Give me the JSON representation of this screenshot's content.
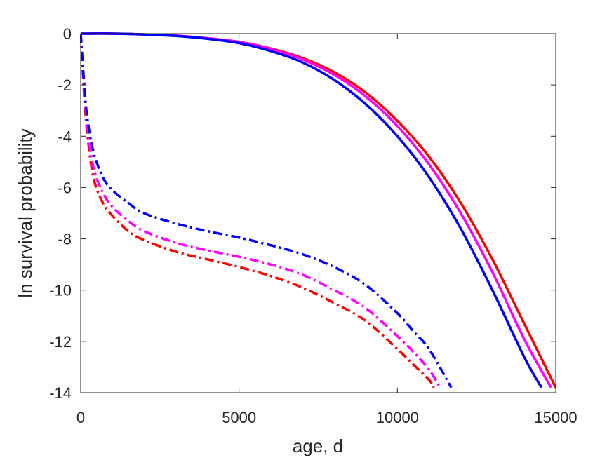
{
  "chart_data": {
    "type": "line",
    "xlabel": "age, d",
    "ylabel": "ln survival probability",
    "xlim": [
      0,
      15000
    ],
    "ylim": [
      -14,
      0
    ],
    "xticks": [
      "0",
      "5000",
      "10000",
      "15000"
    ],
    "yticks": [
      "0",
      "-2",
      "-4",
      "-6",
      "-8",
      "-10",
      "-12",
      "-14"
    ],
    "grid": false,
    "legend": "none",
    "series": [
      {
        "color": "#ff0000",
        "style": "solid",
        "x": [
          0,
          1000,
          2000,
          3000,
          4000,
          5000,
          6000,
          7000,
          8000,
          9000,
          10000,
          11000,
          12000,
          13000,
          14000,
          15000
        ],
        "y": [
          0,
          0,
          -0.03,
          -0.08,
          -0.18,
          -0.32,
          -0.58,
          -0.95,
          -1.5,
          -2.3,
          -3.4,
          -4.8,
          -6.6,
          -8.8,
          -11.3,
          -13.8
        ]
      },
      {
        "color": "#ff00ff",
        "style": "solid",
        "x": [
          0,
          1000,
          2000,
          3000,
          4000,
          5000,
          6000,
          7000,
          8000,
          9000,
          10000,
          11000,
          12000,
          13000,
          14000,
          14850
        ],
        "y": [
          0,
          0,
          -0.03,
          -0.08,
          -0.18,
          -0.33,
          -0.6,
          -1.0,
          -1.6,
          -2.45,
          -3.6,
          -5.1,
          -7.0,
          -9.3,
          -11.9,
          -13.8
        ]
      },
      {
        "color": "#0000ff",
        "style": "solid",
        "x": [
          0,
          1000,
          2000,
          3000,
          4000,
          5000,
          6000,
          7000,
          8000,
          9000,
          10000,
          11000,
          12000,
          13000,
          14000,
          14550
        ],
        "y": [
          0,
          0,
          -0.03,
          -0.09,
          -0.2,
          -0.37,
          -0.68,
          -1.12,
          -1.8,
          -2.75,
          -4.0,
          -5.6,
          -7.6,
          -10.0,
          -12.6,
          -13.8
        ]
      },
      {
        "color": "#ff0000",
        "style": "dashdot",
        "x": [
          0,
          100,
          200,
          400,
          700,
          1000,
          1500,
          2000,
          3000,
          4000,
          5000,
          6000,
          7000,
          8000,
          9000,
          10000,
          10500,
          11000,
          11150
        ],
        "y": [
          0,
          -2.2,
          -3.8,
          -5.6,
          -6.6,
          -7.1,
          -7.7,
          -8.05,
          -8.5,
          -8.8,
          -9.1,
          -9.45,
          -9.9,
          -10.5,
          -11.2,
          -12.3,
          -12.9,
          -13.5,
          -13.8
        ]
      },
      {
        "color": "#ff00ff",
        "style": "dashdot",
        "x": [
          0,
          100,
          200,
          400,
          700,
          1000,
          1500,
          2000,
          3000,
          4000,
          5000,
          6000,
          7000,
          8000,
          9000,
          10000,
          10500,
          11000,
          11350
        ],
        "y": [
          0,
          -2.0,
          -3.5,
          -5.2,
          -6.2,
          -6.75,
          -7.3,
          -7.7,
          -8.15,
          -8.45,
          -8.7,
          -9.0,
          -9.4,
          -10.0,
          -10.7,
          -11.8,
          -12.4,
          -13.1,
          -13.8
        ]
      },
      {
        "color": "#0000ff",
        "style": "dashdot",
        "x": [
          0,
          100,
          200,
          400,
          700,
          1000,
          1500,
          2000,
          3000,
          4000,
          5000,
          6000,
          7000,
          8000,
          9000,
          10000,
          10500,
          11000,
          11700
        ],
        "y": [
          0,
          -1.8,
          -3.2,
          -4.6,
          -5.6,
          -6.1,
          -6.6,
          -7.0,
          -7.4,
          -7.7,
          -7.95,
          -8.25,
          -8.6,
          -9.1,
          -9.8,
          -10.9,
          -11.6,
          -12.3,
          -13.8
        ]
      }
    ]
  }
}
